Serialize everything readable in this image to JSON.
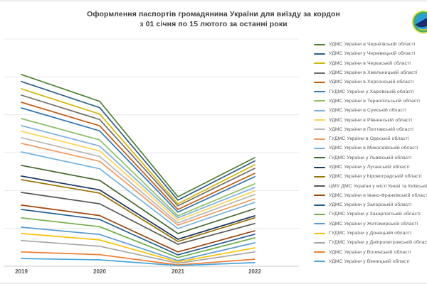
{
  "header": {
    "title_line1": "Оформлення паспортів громадянина України для виїзду за кордон",
    "title_line2": "з 01 січня по 15 лютого за останні роки"
  },
  "logo": {
    "description": "Emblem of the State Migration Service of Ukraine, partially cropped at right edge",
    "colors": {
      "outer_ring": "#e3e96a",
      "green_ring": "#45b04a",
      "globe": "#2b9fd9",
      "swoosh": "#1b2e6e",
      "crescent": "#f5d325"
    }
  },
  "colors": {
    "title_text": "#3f3f3f",
    "legend_text": "#595959",
    "tick_text": "#595959",
    "gridline": "#e8e8e8",
    "axis_line": "#c9c9c9",
    "background": "#ffffff"
  },
  "chart_data": {
    "type": "line",
    "title": "Оформлення паспортів громадянина України для виїзду за кордон з 01 січня по 15 лютого за останні роки",
    "xlabel": "",
    "ylabel": "",
    "x_categories": [
      "2019",
      "2020",
      "2021",
      "2022"
    ],
    "y_axis_labels_shown": false,
    "values_note": "No y-axis tick labels are visible in the chart; series values are estimated as percent of plot height (0-100).",
    "ylim": [
      0,
      100
    ],
    "grid": true,
    "gridline_count": 7,
    "legend_position": "right",
    "series": [
      {
        "name": "УДМС України в Чернігівській області",
        "color": "#538135",
        "values": [
          84.4,
          72.6,
          30.6,
          47.8
        ]
      },
      {
        "name": "УДМС України у Чернівецькій області",
        "color": "#2E5F8A",
        "values": [
          81.3,
          69.8,
          29.1,
          46.3
        ]
      },
      {
        "name": "УДМС України в Черкаській області",
        "color": "#D4B500",
        "values": [
          78.1,
          67.0,
          27.5,
          44.7
        ]
      },
      {
        "name": "УДМС України в Хмельницькій області",
        "color": "#6E6E6E",
        "values": [
          75.3,
          64.6,
          26.6,
          43.1
        ]
      },
      {
        "name": "УДМС України в Херсонській області",
        "color": "#C55A11",
        "values": [
          72.2,
          61.8,
          25.0,
          40.9
        ]
      },
      {
        "name": "ГУДМС України у Харківській області",
        "color": "#2E75B6",
        "values": [
          69.7,
          59.6,
          23.8,
          39.4
        ]
      },
      {
        "name": "УДМС України в Тернопільській області",
        "color": "#8CC168",
        "values": [
          65.0,
          55.6,
          22.2,
          36.3
        ]
      },
      {
        "name": "УДМС України в Сумській області",
        "color": "#7CAFDD",
        "values": [
          61.9,
          52.9,
          21.3,
          34.7
        ]
      },
      {
        "name": "УДМС України в Рівненській області",
        "color": "#FFD34D",
        "values": [
          59.4,
          50.8,
          20.3,
          33.1
        ]
      },
      {
        "name": "УДМС України в Полтавській області",
        "color": "#B7B7B7",
        "values": [
          56.6,
          48.3,
          19.1,
          31.6
        ]
      },
      {
        "name": "ГУДМС України в Одеській області",
        "color": "#F1975A",
        "values": [
          54.1,
          46.2,
          18.1,
          29.7
        ]
      },
      {
        "name": "УДМС України в Миколаївській області",
        "color": "#74B3DE",
        "values": [
          50.3,
          42.9,
          16.6,
          28.1
        ]
      },
      {
        "name": "ГУДМС України у Львівській області",
        "color": "#43682B",
        "values": [
          44.4,
          37.8,
          14.4,
          25.3
        ]
      },
      {
        "name": "УДМС України у Луганській області",
        "color": "#1F3864",
        "values": [
          39.7,
          33.6,
          11.9,
          22.2
        ]
      },
      {
        "name": "УДМС України у Кіровоградській області",
        "color": "#997300",
        "values": [
          38.1,
          32.2,
          10.9,
          21.3
        ]
      },
      {
        "name": "ЦМУ ДМС України у місті Києві та Київській області",
        "color": "#595959",
        "values": [
          32.5,
          27.5,
          9.7,
          18.8
        ]
      },
      {
        "name": "УДМС України в Івано-Франківській області",
        "color": "#9E480E",
        "values": [
          26.9,
          22.3,
          6.3,
          15.6
        ]
      },
      {
        "name": "УДМС України у Запорізькій області",
        "color": "#255E91",
        "values": [
          25.0,
          20.6,
          5.0,
          14.1
        ]
      },
      {
        "name": "ГУДМС України у Закарпатській області",
        "color": "#70AD47",
        "values": [
          21.3,
          17.4,
          3.8,
          12.5
        ]
      },
      {
        "name": "УДМС України у Житомирській області",
        "color": "#5B9BD5",
        "values": [
          17.2,
          14.0,
          2.5,
          10.3
        ]
      },
      {
        "name": "ГУДМС України у Донецькій області",
        "color": "#FFC000",
        "values": [
          14.4,
          11.6,
          1.9,
          8.1
        ]
      },
      {
        "name": "ГУДМС України у Дніпропетровській області",
        "color": "#A5A5A5",
        "values": [
          11.3,
          8.8,
          1.3,
          6.3
        ]
      },
      {
        "name": "УДМС України у Волинській області",
        "color": "#ED7D31",
        "values": [
          6.3,
          5.1,
          0.6,
          3.1
        ]
      },
      {
        "name": "УДМС України у Вінницькій області",
        "color": "#4BA6DB",
        "values": [
          3.4,
          2.8,
          0.3,
          1.6
        ]
      }
    ]
  }
}
